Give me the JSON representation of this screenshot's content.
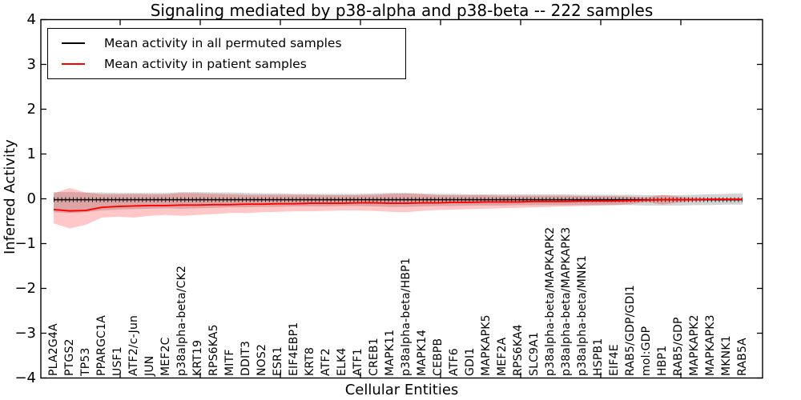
{
  "chart_data": {
    "type": "line",
    "title": "Signaling mediated by p38-alpha and p38-beta -- 222 samples",
    "xlabel": "Cellular Entities",
    "ylabel": "Inferred Activity",
    "ylim": [
      -4,
      4
    ],
    "yticks": [
      4,
      3,
      2,
      1,
      0,
      -1,
      -2,
      -3,
      -4
    ],
    "grid": false,
    "legend_position": "upper left",
    "categories": [
      "PLA2G4A",
      "PTGS2",
      "TP53",
      "PPARGC1A",
      "USF1",
      "ATF2/c-Jun",
      "JUN",
      "MEF2C",
      "p38alpha-beta/CK2",
      "KRT19",
      "RPS6KA5",
      "MITF",
      "DDIT3",
      "NOS2",
      "ESR1",
      "EIF4EBP1",
      "KRT8",
      "ATF2",
      "ELK4",
      "ATF1",
      "CREB1",
      "MAPK11",
      "p38alpha-beta/HBP1",
      "MAPK14",
      "CEBPB",
      "ATF6",
      "GDI1",
      "MAPKAPK5",
      "MEF2A",
      "RPS6KA4",
      "SLC9A1",
      "p38alpha-beta/MAPKAPK2",
      "p38alpha-beta/MAPKAPK3",
      "p38alpha-beta/MNK1",
      "HSPB1",
      "EIF4E",
      "RAB5/GDP/GDI1",
      "mol:GDP",
      "HBP1",
      "RAB5/GDP",
      "MAPKAPK2",
      "MAPKAPK3",
      "MKNK1",
      "RAB5A"
    ],
    "series": [
      {
        "name": "Mean activity in all permuted samples",
        "color": "#000000",
        "band_color": "rgba(128,128,128,0.35)",
        "values": [
          -0.02,
          -0.02,
          -0.02,
          -0.02,
          -0.02,
          -0.02,
          -0.02,
          -0.02,
          -0.02,
          -0.02,
          -0.02,
          -0.02,
          -0.02,
          -0.02,
          -0.02,
          -0.02,
          -0.02,
          -0.02,
          -0.02,
          -0.02,
          -0.02,
          -0.02,
          -0.02,
          -0.02,
          -0.02,
          -0.02,
          -0.02,
          -0.02,
          -0.02,
          -0.02,
          -0.02,
          -0.02,
          -0.02,
          -0.02,
          -0.02,
          -0.02,
          -0.02,
          -0.02,
          -0.02,
          -0.02,
          -0.02,
          -0.02,
          -0.02,
          -0.02
        ],
        "band_upper": [
          0.15,
          0.15,
          0.14,
          0.14,
          0.13,
          0.13,
          0.13,
          0.13,
          0.15,
          0.15,
          0.14,
          0.14,
          0.13,
          0.12,
          0.12,
          0.11,
          0.11,
          0.11,
          0.11,
          0.11,
          0.12,
          0.13,
          0.13,
          0.12,
          0.11,
          0.11,
          0.1,
          0.1,
          0.1,
          0.1,
          0.1,
          0.1,
          0.1,
          0.09,
          0.09,
          0.09,
          0.09,
          0.08,
          0.08,
          0.08,
          0.09,
          0.1,
          0.11,
          0.12
        ],
        "band_lower": [
          -0.3,
          -0.32,
          -0.3,
          -0.26,
          -0.24,
          -0.23,
          -0.22,
          -0.21,
          -0.22,
          -0.21,
          -0.2,
          -0.19,
          -0.19,
          -0.18,
          -0.18,
          -0.17,
          -0.17,
          -0.17,
          -0.16,
          -0.16,
          -0.17,
          -0.18,
          -0.18,
          -0.17,
          -0.16,
          -0.16,
          -0.15,
          -0.15,
          -0.15,
          -0.14,
          -0.14,
          -0.14,
          -0.14,
          -0.14,
          -0.14,
          -0.14,
          -0.14,
          -0.15,
          -0.15,
          -0.15,
          -0.14,
          -0.14,
          -0.13,
          -0.13
        ]
      },
      {
        "name": "Mean activity in patient samples",
        "color": "#ff0000",
        "band_color": "rgba(255,0,0,0.22)",
        "values": [
          -0.24,
          -0.27,
          -0.26,
          -0.19,
          -0.17,
          -0.16,
          -0.15,
          -0.15,
          -0.14,
          -0.14,
          -0.13,
          -0.13,
          -0.12,
          -0.12,
          -0.11,
          -0.11,
          -0.1,
          -0.1,
          -0.1,
          -0.09,
          -0.09,
          -0.1,
          -0.1,
          -0.09,
          -0.09,
          -0.08,
          -0.08,
          -0.07,
          -0.07,
          -0.07,
          -0.06,
          -0.06,
          -0.06,
          -0.05,
          -0.05,
          -0.05,
          -0.04,
          -0.03,
          -0.02,
          -0.02,
          -0.02,
          -0.01,
          -0.01,
          -0.01
        ],
        "band_upper": [
          0.12,
          0.24,
          0.14,
          0.1,
          0.1,
          0.11,
          0.1,
          0.1,
          0.13,
          0.12,
          0.11,
          0.1,
          0.09,
          0.09,
          0.09,
          0.09,
          0.09,
          0.08,
          0.08,
          0.08,
          0.09,
          0.11,
          0.12,
          0.1,
          0.08,
          0.08,
          0.08,
          0.08,
          0.07,
          0.07,
          0.07,
          0.07,
          0.07,
          0.06,
          0.06,
          0.06,
          0.05,
          0.03,
          0.09,
          0.05,
          0.02,
          0.01,
          0.01,
          0.01
        ],
        "band_lower": [
          -0.55,
          -0.66,
          -0.58,
          -0.42,
          -0.4,
          -0.42,
          -0.38,
          -0.36,
          -0.38,
          -0.36,
          -0.34,
          -0.32,
          -0.32,
          -0.3,
          -0.29,
          -0.28,
          -0.28,
          -0.27,
          -0.26,
          -0.26,
          -0.27,
          -0.29,
          -0.3,
          -0.27,
          -0.25,
          -0.24,
          -0.23,
          -0.22,
          -0.21,
          -0.2,
          -0.19,
          -0.18,
          -0.17,
          -0.16,
          -0.15,
          -0.14,
          -0.12,
          -0.07,
          -0.13,
          -0.08,
          -0.05,
          -0.04,
          -0.04,
          -0.04
        ]
      }
    ]
  }
}
